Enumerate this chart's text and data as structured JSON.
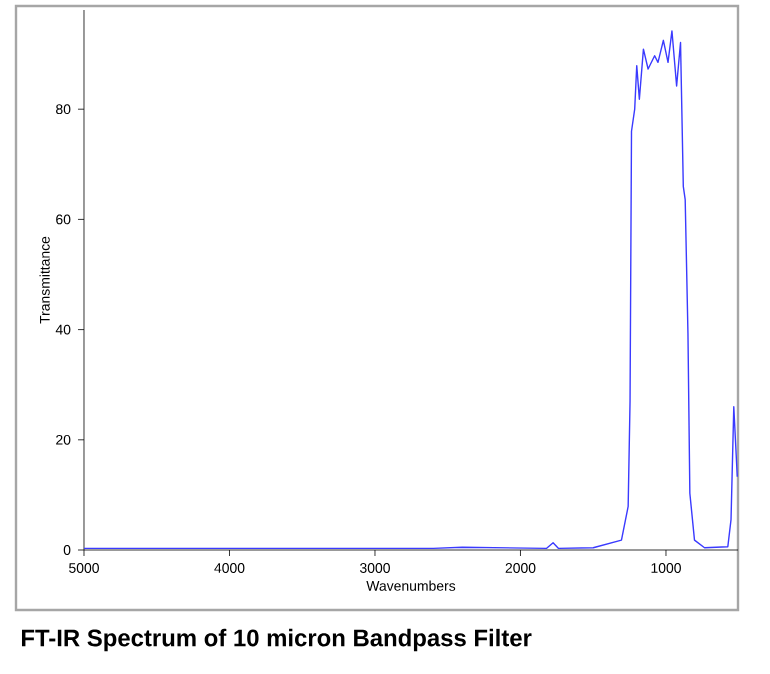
{
  "chart_data": {
    "type": "line",
    "title": "FT-IR Spectrum of 10 micron Bandpass Filter",
    "xlabel": "Wavenumbers",
    "ylabel": "Transmittance",
    "xlim": [
      5000,
      505
    ],
    "ylim": [
      0,
      98
    ],
    "xticks": [
      5000,
      4000,
      3000,
      2000,
      1000
    ],
    "yticks": [
      0,
      20,
      40,
      60,
      80
    ],
    "series": [
      {
        "color": "#3a3aff",
        "x": [
          5000,
          4000,
          2600,
          2400,
          1820,
          1776,
          1740,
          1500,
          1306,
          1260,
          1247,
          1237,
          1215,
          1201,
          1183,
          1155,
          1123,
          1078,
          1055,
          1018,
          986,
          959,
          927,
          900,
          881,
          868,
          849,
          836,
          804,
          735,
          575,
          553,
          534,
          510
        ],
        "values": [
          0.3,
          0.3,
          0.3,
          0.5,
          0.3,
          1.3,
          0.3,
          0.4,
          1.8,
          7.9,
          27,
          76,
          80,
          87.9,
          81.8,
          90.9,
          87.3,
          89.7,
          88.5,
          92.5,
          88.5,
          94.2,
          84.2,
          92.1,
          66,
          63.6,
          39.4,
          10.3,
          1.8,
          0.4,
          0.6,
          5.5,
          26,
          13.3
        ]
      }
    ]
  }
}
